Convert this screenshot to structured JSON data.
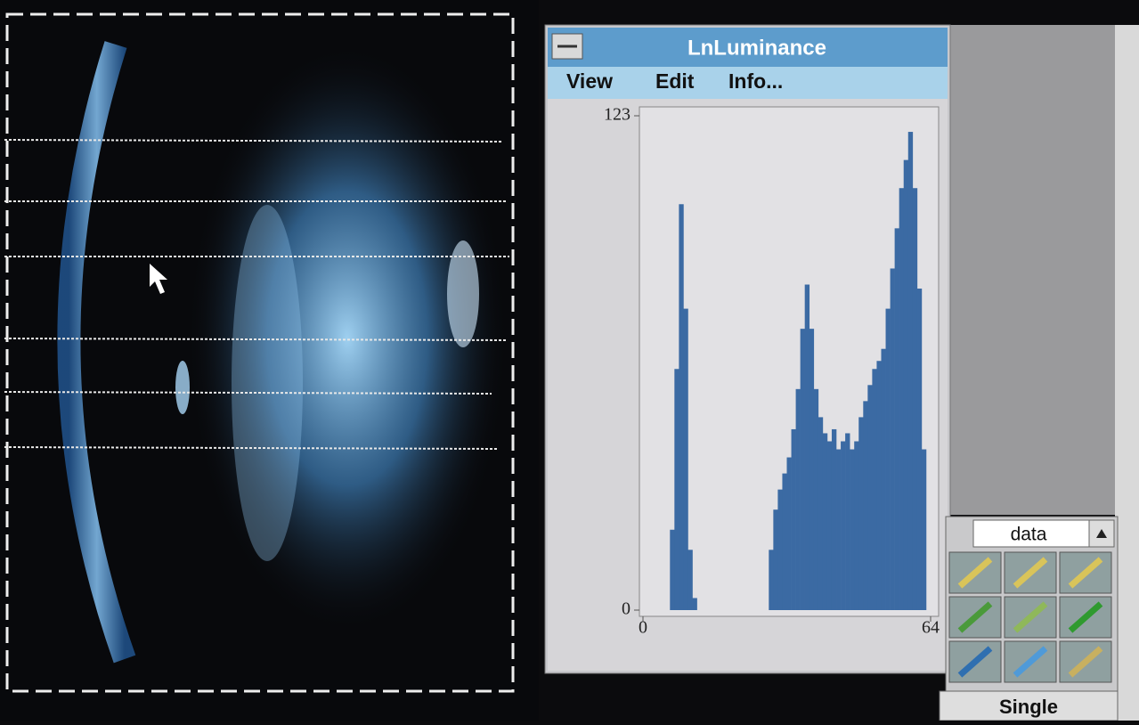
{
  "window": {
    "title": "LnLuminance",
    "menu": [
      "View",
      "Edit",
      "Info..."
    ]
  },
  "histogram": {
    "bins": [
      0,
      1,
      2,
      3,
      4,
      5,
      6,
      7,
      8,
      9,
      10,
      11,
      12,
      13,
      14,
      15,
      16,
      17,
      18,
      19,
      20,
      21,
      22,
      23,
      24,
      25,
      26,
      27,
      28,
      29,
      30,
      31,
      32,
      33,
      34,
      35,
      36,
      37,
      38,
      39,
      40,
      41,
      42,
      43,
      44,
      45,
      46,
      47,
      48,
      49,
      50,
      51,
      52,
      53,
      54,
      55,
      56,
      57,
      58,
      59,
      60,
      61,
      62,
      63,
      64
    ],
    "values": [
      0,
      0,
      0,
      0,
      0,
      0,
      20,
      60,
      101,
      75,
      15,
      3,
      0,
      0,
      0,
      0,
      0,
      0,
      0,
      0,
      0,
      0,
      0,
      0,
      0,
      0,
      0,
      0,
      15,
      25,
      30,
      34,
      38,
      45,
      55,
      70,
      81,
      70,
      55,
      48,
      44,
      42,
      45,
      40,
      42,
      44,
      40,
      42,
      48,
      52,
      56,
      60,
      62,
      65,
      75,
      85,
      95,
      105,
      112,
      119,
      105,
      80,
      40,
      0
    ],
    "xlim": [
      0,
      64
    ],
    "ylim": [
      0,
      123
    ],
    "xticks": [
      0,
      64
    ],
    "yticks": [
      0,
      123
    ],
    "color": "#3b6aa3"
  },
  "palette": {
    "selector": "data",
    "mode": "Single"
  }
}
